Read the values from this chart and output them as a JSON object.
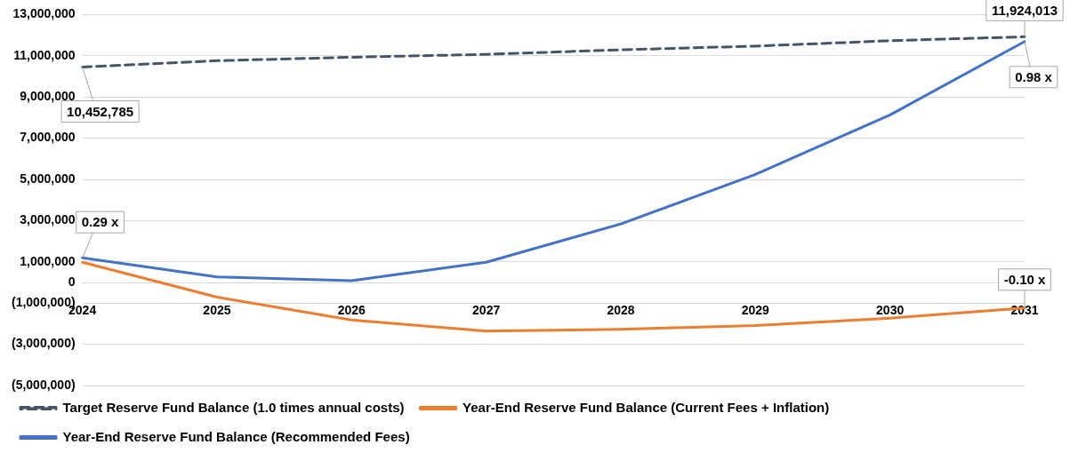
{
  "chart_data": {
    "type": "line",
    "categories": [
      "2024",
      "2025",
      "2026",
      "2027",
      "2028",
      "2029",
      "2030",
      "2031"
    ],
    "series": [
      {
        "name": "Target Reserve Fund Balance (1.0 times annual costs)",
        "color": "#44546a",
        "line_style": "dashed",
        "values": [
          10452785,
          10760000,
          10930000,
          11070000,
          11290000,
          11470000,
          11730000,
          11924013
        ]
      },
      {
        "name": "Year-End Reserve Fund Balance (Current Fees + Inflation)",
        "color": "#ed7d31",
        "line_style": "solid",
        "values": [
          980000,
          -710000,
          -1820000,
          -2360000,
          -2270000,
          -2090000,
          -1730000,
          -1240000
        ]
      },
      {
        "name": "Year-End Reserve Fund Balance (Recommended Fees)",
        "color": "#4472c4",
        "line_style": "solid",
        "values": [
          1200000,
          270000,
          90000,
          980000,
          2840000,
          5240000,
          8130000,
          11690000
        ]
      }
    ],
    "ylim": [
      -5000000,
      13000000
    ],
    "yticks": [
      {
        "value": -5000000,
        "label": "(5,000,000)"
      },
      {
        "value": -3000000,
        "label": "(3,000,000)"
      },
      {
        "value": -1000000,
        "label": "(1,000,000)"
      },
      0,
      {
        "value": 1000000,
        "label": "1,000,000"
      },
      {
        "value": 3000000,
        "label": "3,000,000"
      },
      {
        "value": 5000000,
        "label": "5,000,000"
      },
      {
        "value": 7000000,
        "label": "7,000,000"
      },
      {
        "value": 9000000,
        "label": "9,000,000"
      },
      {
        "value": 11000000,
        "label": "11,000,000"
      },
      {
        "value": 13000000,
        "label": "13,000,000"
      }
    ],
    "grid": "y",
    "legend": "bottom",
    "marker": "none",
    "annotations": [
      {
        "text": "10,452,785",
        "x": "2024",
        "y": 10452785
      },
      {
        "text": "11,924,013",
        "x": "2031",
        "y": 11924013
      },
      {
        "text": "0.29 x",
        "x": "2024",
        "y": 1200000
      },
      {
        "text": "0.98 x",
        "x": "2031",
        "y": 11690000
      },
      {
        "text": "-0.10 x",
        "x": "2031",
        "y": -1240000
      }
    ]
  }
}
